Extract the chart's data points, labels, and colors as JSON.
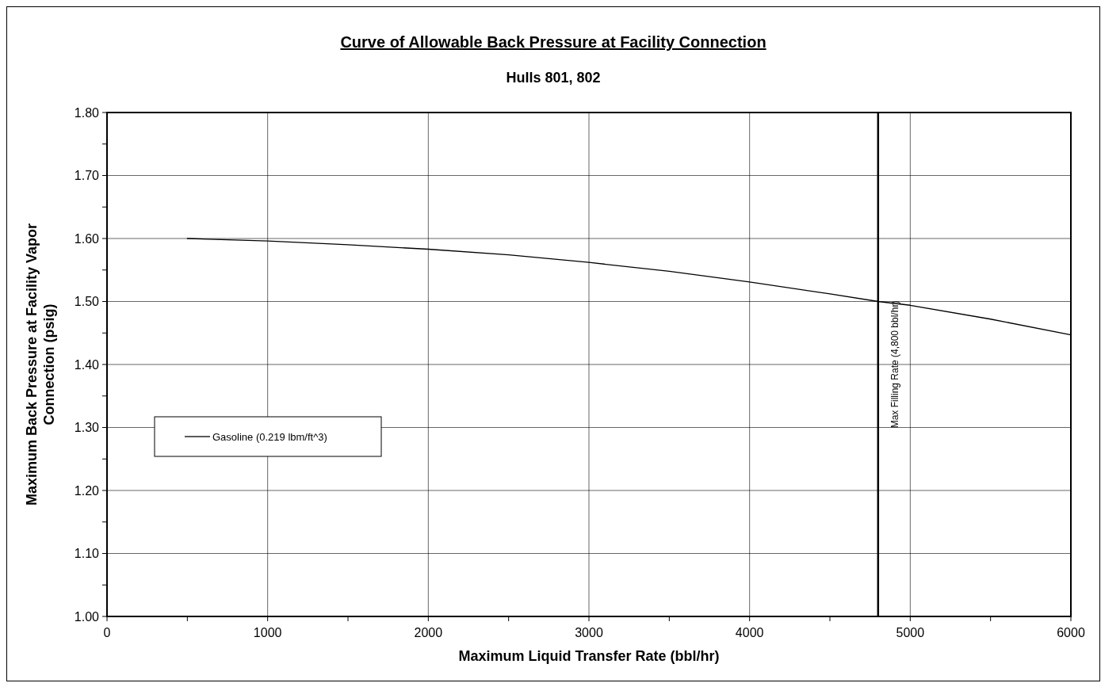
{
  "chart_data": {
    "type": "line",
    "title": "Curve of Allowable Back Pressure at Facility Connection",
    "subtitle": "Hulls 801, 802",
    "xlabel": "Maximum Liquid Transfer Rate (bbl/hr)",
    "ylabel": "Maximum Back Pressure at Facility Vapor Connection (psig)",
    "x": [
      500,
      1000,
      1500,
      2000,
      2500,
      3000,
      3500,
      4000,
      4500,
      4800,
      5000,
      5500,
      6000
    ],
    "series": [
      {
        "name": "Gasoline (0.219 lbm/ft^3)",
        "color": "#000000",
        "values": [
          1.6,
          1.596,
          1.59,
          1.583,
          1.574,
          1.562,
          1.548,
          1.531,
          1.512,
          1.5,
          1.494,
          1.472,
          1.447
        ]
      }
    ],
    "xlim": [
      0,
      6000
    ],
    "xticks": [
      0,
      {
        "value": 500,
        "label": null
      },
      1000,
      {
        "value": 1500,
        "label": null
      },
      2000,
      {
        "value": 2500,
        "label": null
      },
      3000,
      {
        "value": 3500,
        "label": null
      },
      4000,
      {
        "value": 4500,
        "label": null
      },
      5000,
      {
        "value": 5500,
        "label": null
      },
      6000
    ],
    "ylim": [
      1.0,
      1.8
    ],
    "yticks": [
      {
        "value": 1.0,
        "label": "1.00"
      },
      {
        "value": 1.05,
        "label": null
      },
      {
        "value": 1.1,
        "label": "1.10"
      },
      {
        "value": 1.15,
        "label": null
      },
      {
        "value": 1.2,
        "label": "1.20"
      },
      {
        "value": 1.25,
        "label": null
      },
      {
        "value": 1.3,
        "label": "1.30"
      },
      {
        "value": 1.35,
        "label": null
      },
      {
        "value": 1.4,
        "label": "1.40"
      },
      {
        "value": 1.45,
        "label": null
      },
      {
        "value": 1.5,
        "label": "1.50"
      },
      {
        "value": 1.55,
        "label": null
      },
      {
        "value": 1.6,
        "label": "1.60"
      },
      {
        "value": 1.65,
        "label": null
      },
      {
        "value": 1.7,
        "label": "1.70"
      },
      {
        "value": 1.75,
        "label": null
      },
      {
        "value": 1.8,
        "label": "1.80"
      }
    ],
    "ref_lines": [
      {
        "axis": "x",
        "value": 4800,
        "label": "Max Filling Rate (4,800 bbl/hr)",
        "color": "#000000"
      }
    ],
    "grid": true,
    "legend": "bottom left",
    "marker": "none",
    "line_style": "solid"
  }
}
